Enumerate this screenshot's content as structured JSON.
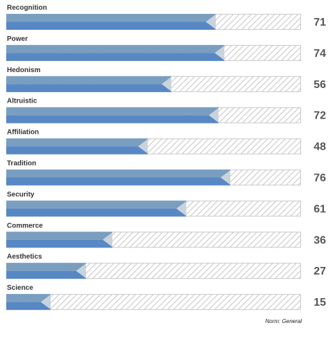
{
  "chart_data": {
    "type": "bar",
    "orientation": "horizontal",
    "categories": [
      "Recognition",
      "Power",
      "Hedonism",
      "Altruistic",
      "Affiliation",
      "Tradition",
      "Security",
      "Commerce",
      "Aesthetics",
      "Science"
    ],
    "values": [
      71,
      74,
      56,
      72,
      48,
      76,
      61,
      36,
      27,
      15
    ],
    "xlim": [
      0,
      100
    ],
    "grid": false,
    "legend": "none"
  },
  "footer": {
    "norm_label": "Norm: General"
  },
  "colors": {
    "bar_top": "#7a9ec0",
    "bar_bottom": "#5888c4",
    "arrow": "#c9d3de",
    "track_border": "#c8c8c8",
    "hatch": "#c8c8c8",
    "value_text": "#555555"
  }
}
